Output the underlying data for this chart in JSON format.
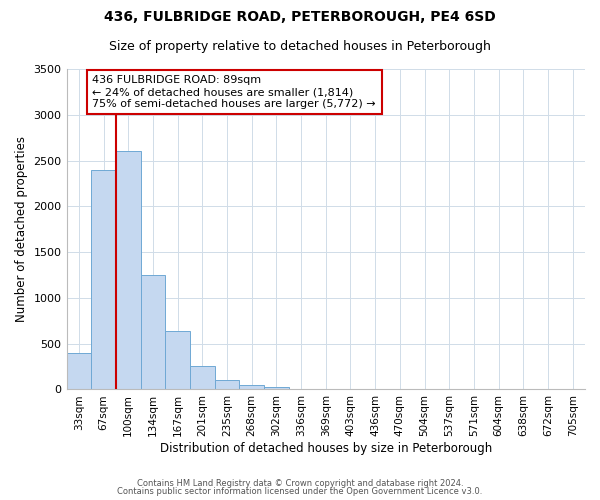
{
  "title": "436, FULBRIDGE ROAD, PETERBOROUGH, PE4 6SD",
  "subtitle": "Size of property relative to detached houses in Peterborough",
  "xlabel": "Distribution of detached houses by size in Peterborough",
  "ylabel": "Number of detached properties",
  "bar_values": [
    400,
    2400,
    2600,
    1250,
    640,
    260,
    100,
    50,
    30,
    10,
    0,
    0,
    0,
    0,
    0,
    0,
    0,
    0,
    0,
    0,
    0
  ],
  "bin_labels": [
    "33sqm",
    "67sqm",
    "100sqm",
    "134sqm",
    "167sqm",
    "201sqm",
    "235sqm",
    "268sqm",
    "302sqm",
    "336sqm",
    "369sqm",
    "403sqm",
    "436sqm",
    "470sqm",
    "504sqm",
    "537sqm",
    "571sqm",
    "604sqm",
    "638sqm",
    "672sqm",
    "705sqm"
  ],
  "bar_color": "#c5d8f0",
  "bar_edge_color": "#6fa8d4",
  "vline_x_index": 1.5,
  "vline_color": "#cc0000",
  "annotation_title": "436 FULBRIDGE ROAD: 89sqm",
  "annotation_line1": "← 24% of detached houses are smaller (1,814)",
  "annotation_line2": "75% of semi-detached houses are larger (5,772) →",
  "annotation_box_color": "#cc0000",
  "ylim": [
    0,
    3500
  ],
  "yticks": [
    0,
    500,
    1000,
    1500,
    2000,
    2500,
    3000,
    3500
  ],
  "footer1": "Contains HM Land Registry data © Crown copyright and database right 2024.",
  "footer2": "Contains public sector information licensed under the Open Government Licence v3.0.",
  "bg_color": "#ffffff",
  "grid_color": "#d0dce8",
  "title_fontsize": 10,
  "subtitle_fontsize": 9
}
